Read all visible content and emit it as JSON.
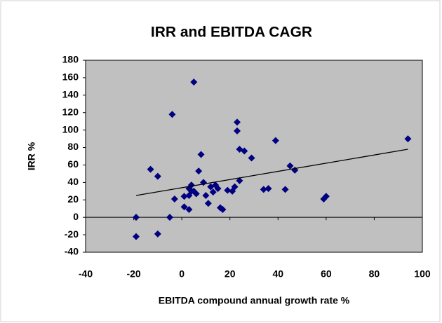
{
  "chart_data": {
    "type": "scatter",
    "title": "IRR and EBITDA CAGR",
    "x_label": "EBITDA compound annual growth rate %",
    "y_label": "IRR %",
    "series": [
      {
        "name": "IRR",
        "color": "#000080",
        "x": [
          -19,
          -19,
          -10,
          -13,
          -10,
          -4,
          -3,
          -5,
          5,
          1,
          1,
          3,
          3,
          4,
          4,
          3,
          5,
          6,
          7,
          8,
          9,
          10,
          11,
          12,
          13,
          14,
          15,
          16,
          17,
          19,
          21,
          22,
          23,
          23,
          24,
          24,
          26,
          29,
          34,
          36,
          39,
          43,
          45,
          47,
          59,
          60,
          94
        ],
        "values": [
          -22,
          0,
          -19,
          55,
          47,
          118,
          21,
          0,
          155,
          24,
          12,
          9,
          25,
          30,
          37,
          33,
          30,
          27,
          53,
          72,
          40,
          25,
          16,
          35,
          29,
          37,
          33,
          11,
          9,
          31,
          30,
          35,
          99,
          109,
          78,
          42,
          76,
          68,
          32,
          33,
          88,
          32,
          59,
          54,
          21,
          24,
          90
        ]
      }
    ],
    "trendline": {
      "x": [
        -19,
        94
      ],
      "values": [
        25,
        78
      ]
    },
    "xlim": [
      -40,
      100
    ],
    "xticks": [
      -40,
      -20,
      0,
      20,
      40,
      60,
      80,
      100
    ],
    "ylim": [
      -40,
      180
    ],
    "yticks": [
      -40,
      -20,
      0,
      20,
      40,
      60,
      80,
      100,
      120,
      140,
      160,
      180
    ],
    "grid": false,
    "plot_background": "#c0c0c0"
  }
}
